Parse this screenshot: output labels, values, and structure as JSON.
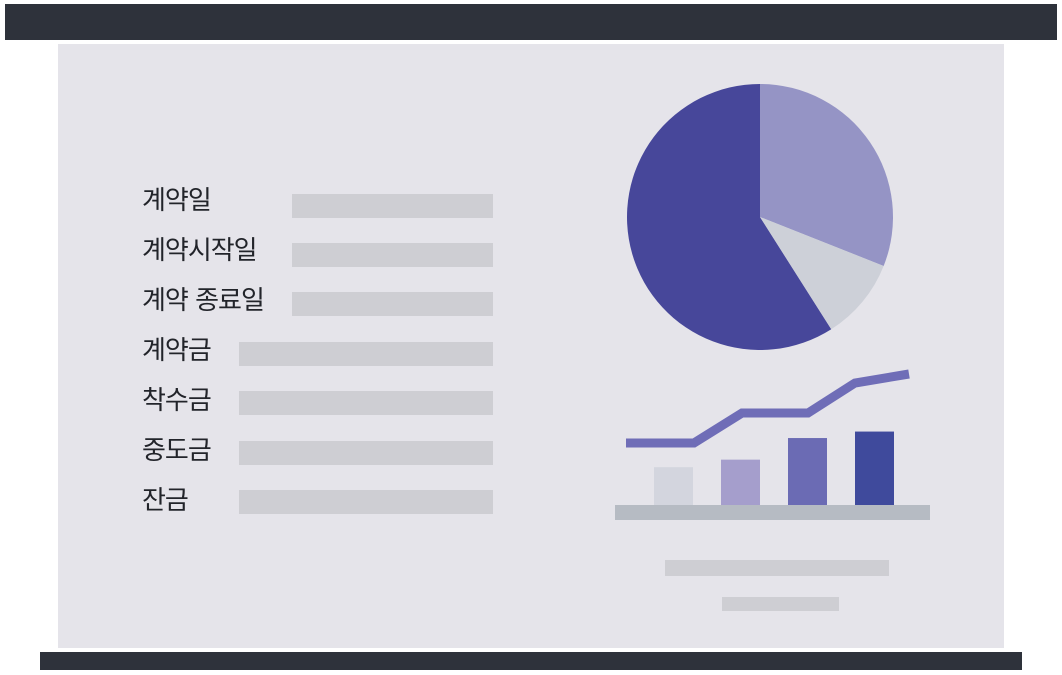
{
  "form": {
    "fields": [
      {
        "label": "계약일"
      },
      {
        "label": "계약시작일"
      },
      {
        "label": "계약 종료일"
      },
      {
        "label": "계약금"
      },
      {
        "label": "착수금"
      },
      {
        "label": "중도금"
      },
      {
        "label": "잔금"
      }
    ]
  },
  "colors": {
    "frame": "#2e323b",
    "board": "#e5e4ea",
    "placeholder": "#ceced3",
    "primary": "#47479a",
    "secondary": "#9594c5",
    "muted": "#cdd0d8",
    "line": "#6f6db7"
  },
  "chart_data": [
    {
      "type": "pie",
      "values": [
        59,
        31,
        10
      ],
      "colors": [
        "#47479a",
        "#9594c5",
        "#cdd0d8"
      ]
    },
    {
      "type": "bar",
      "values": [
        35,
        42,
        62,
        68
      ],
      "colors": [
        "#d3d5de",
        "#a59ecc",
        "#6b6bb4",
        "#3f4a9c"
      ],
      "line": [
        1,
        1,
        2,
        2,
        3,
        3.3
      ]
    }
  ]
}
